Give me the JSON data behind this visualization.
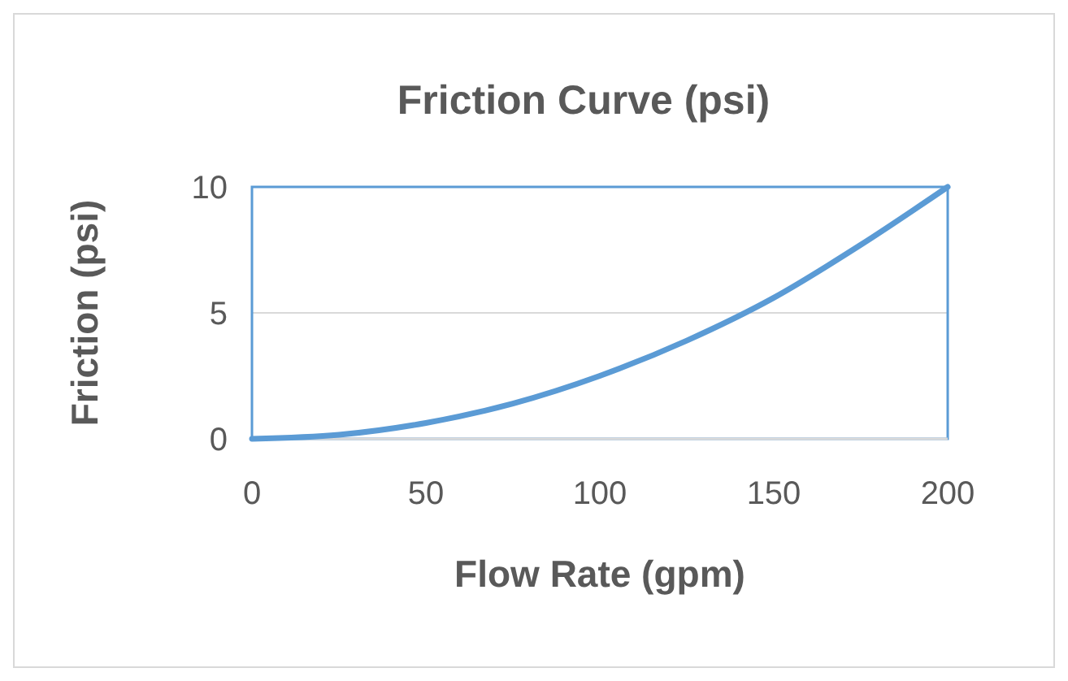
{
  "chart_data": {
    "type": "line",
    "title": "Friction Curve (psi)",
    "xlabel": "Flow Rate (gpm)",
    "ylabel": "Friction (psi)",
    "x": [
      0,
      25,
      50,
      75,
      100,
      125,
      150,
      175,
      200
    ],
    "series": [
      {
        "color": "#5b9bd5",
        "values": [
          0,
          0.16,
          0.63,
          1.4,
          2.5,
          3.9,
          5.6,
          7.7,
          10
        ]
      }
    ],
    "xlim": [
      0,
      200
    ],
    "xticks": [
      0,
      50,
      100,
      150,
      200
    ],
    "ylim": [
      0,
      10
    ],
    "yticks": [
      0,
      5,
      10
    ],
    "grid": "y",
    "marker": "none",
    "line_style": "solid"
  }
}
